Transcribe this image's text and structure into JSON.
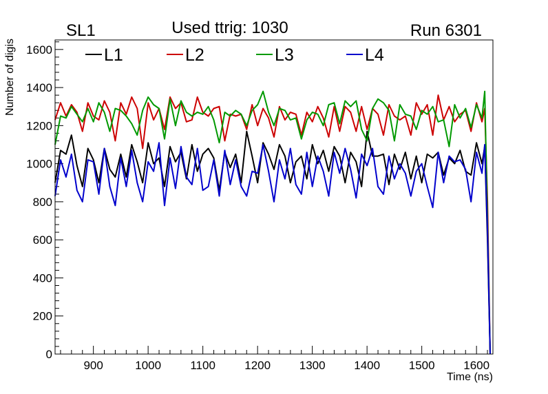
{
  "chart_data": {
    "type": "line",
    "header_left": "SL1",
    "title": "Used ttrig: 1030",
    "header_right": "Run 6301",
    "xlabel": "Time (ns)",
    "ylabel": "Number of digis",
    "xlim": [
      830,
      1630
    ],
    "ylim": [
      0,
      1650
    ],
    "x_ticks": [
      900,
      1000,
      1100,
      1200,
      1300,
      1400,
      1500,
      1600
    ],
    "y_ticks": [
      0,
      200,
      400,
      600,
      800,
      1000,
      1200,
      1400,
      1600
    ],
    "x": [
      830,
      840,
      850,
      860,
      870,
      880,
      890,
      900,
      910,
      920,
      930,
      940,
      950,
      960,
      970,
      980,
      990,
      1000,
      1010,
      1020,
      1030,
      1040,
      1050,
      1060,
      1070,
      1080,
      1090,
      1100,
      1110,
      1120,
      1130,
      1140,
      1150,
      1160,
      1170,
      1180,
      1190,
      1200,
      1210,
      1220,
      1230,
      1240,
      1250,
      1260,
      1270,
      1280,
      1290,
      1300,
      1310,
      1320,
      1330,
      1340,
      1350,
      1360,
      1370,
      1380,
      1390,
      1400,
      1410,
      1420,
      1430,
      1440,
      1450,
      1460,
      1470,
      1480,
      1490,
      1500,
      1510,
      1520,
      1530,
      1540,
      1550,
      1560,
      1570,
      1580,
      1590,
      1600,
      1610,
      1615,
      1620,
      1625
    ],
    "series": [
      {
        "name": "L1",
        "color": "#000000",
        "values": [
          900,
          1070,
          1050,
          1150,
          990,
          880,
          1080,
          1020,
          900,
          1080,
          970,
          930,
          1050,
          930,
          1100,
          1010,
          900,
          1110,
          1000,
          1030,
          880,
          1090,
          1010,
          1060,
          920,
          1100,
          960,
          1050,
          1080,
          1030,
          860,
          1060,
          980,
          1050,
          900,
          1170,
          1040,
          900,
          1110,
          1050,
          970,
          1100,
          1040,
          900,
          1010,
          1040,
          920,
          1100,
          1000,
          1070,
          960,
          1090,
          1040,
          900,
          1060,
          1010,
          880,
          1170,
          1040,
          1040,
          1050,
          890,
          1050,
          970,
          1060,
          920,
          1040,
          900,
          1050,
          1030,
          1060,
          940,
          1030,
          1000,
          1070,
          960,
          940,
          1110,
          1000,
          1090,
          600,
          0
        ]
      },
      {
        "name": "L2",
        "color": "#cc0000",
        "values": [
          1230,
          1320,
          1250,
          1310,
          1270,
          1170,
          1320,
          1250,
          1230,
          1330,
          1270,
          1120,
          1320,
          1260,
          1350,
          1290,
          1080,
          1320,
          1230,
          1290,
          1180,
          1350,
          1290,
          1320,
          1220,
          1230,
          1350,
          1270,
          1250,
          1290,
          1300,
          1120,
          1260,
          1250,
          1260,
          1180,
          1310,
          1200,
          1290,
          1240,
          1140,
          1300,
          1230,
          1270,
          1260,
          1150,
          1270,
          1220,
          1300,
          1240,
          1140,
          1300,
          1170,
          1300,
          1270,
          1170,
          1300,
          1180,
          1290,
          1260,
          1150,
          1310,
          1250,
          1230,
          1250,
          1150,
          1320,
          1260,
          1310,
          1150,
          1360,
          1230,
          1300,
          1220,
          1260,
          1280,
          1170,
          1320,
          1220,
          1290,
          800,
          0
        ]
      },
      {
        "name": "L3",
        "color": "#009900",
        "values": [
          1100,
          1250,
          1240,
          1300,
          1260,
          1220,
          1290,
          1220,
          1320,
          1270,
          1170,
          1290,
          1280,
          1250,
          1210,
          1150,
          1280,
          1350,
          1310,
          1290,
          1130,
          1340,
          1200,
          1330,
          1270,
          1250,
          1270,
          1260,
          1300,
          1230,
          1110,
          1270,
          1250,
          1280,
          1260,
          1200,
          1280,
          1310,
          1380,
          1270,
          1200,
          1290,
          1280,
          1230,
          1240,
          1130,
          1230,
          1270,
          1260,
          1200,
          1310,
          1320,
          1210,
          1330,
          1300,
          1330,
          1180,
          1120,
          1290,
          1340,
          1320,
          1280,
          1120,
          1310,
          1260,
          1250,
          1180,
          1280,
          1260,
          1300,
          1220,
          1230,
          1090,
          1310,
          1240,
          1290,
          1190,
          1310,
          1240,
          1380,
          700,
          0
        ]
      },
      {
        "name": "L4",
        "color": "#0000cc",
        "values": [
          830,
          1020,
          930,
          1050,
          860,
          800,
          1020,
          1010,
          840,
          1080,
          880,
          780,
          1030,
          880,
          1070,
          900,
          800,
          1010,
          960,
          1110,
          780,
          1030,
          870,
          1090,
          930,
          890,
          1080,
          860,
          880,
          1020,
          830,
          1070,
          890,
          1020,
          880,
          830,
          960,
          950,
          1100,
          960,
          800,
          1020,
          920,
          1080,
          890,
          840,
          1060,
          880,
          1040,
          960,
          830,
          1060,
          950,
          1080,
          970,
          820,
          1050,
          990,
          1080,
          880,
          840,
          1040,
          920,
          1000,
          950,
          830,
          960,
          1000,
          880,
          770,
          1060,
          900,
          1040,
          1010,
          1020,
          970,
          800,
          1060,
          950,
          1100,
          650,
          0
        ]
      }
    ],
    "legend_placement": "top, horizontal row"
  }
}
